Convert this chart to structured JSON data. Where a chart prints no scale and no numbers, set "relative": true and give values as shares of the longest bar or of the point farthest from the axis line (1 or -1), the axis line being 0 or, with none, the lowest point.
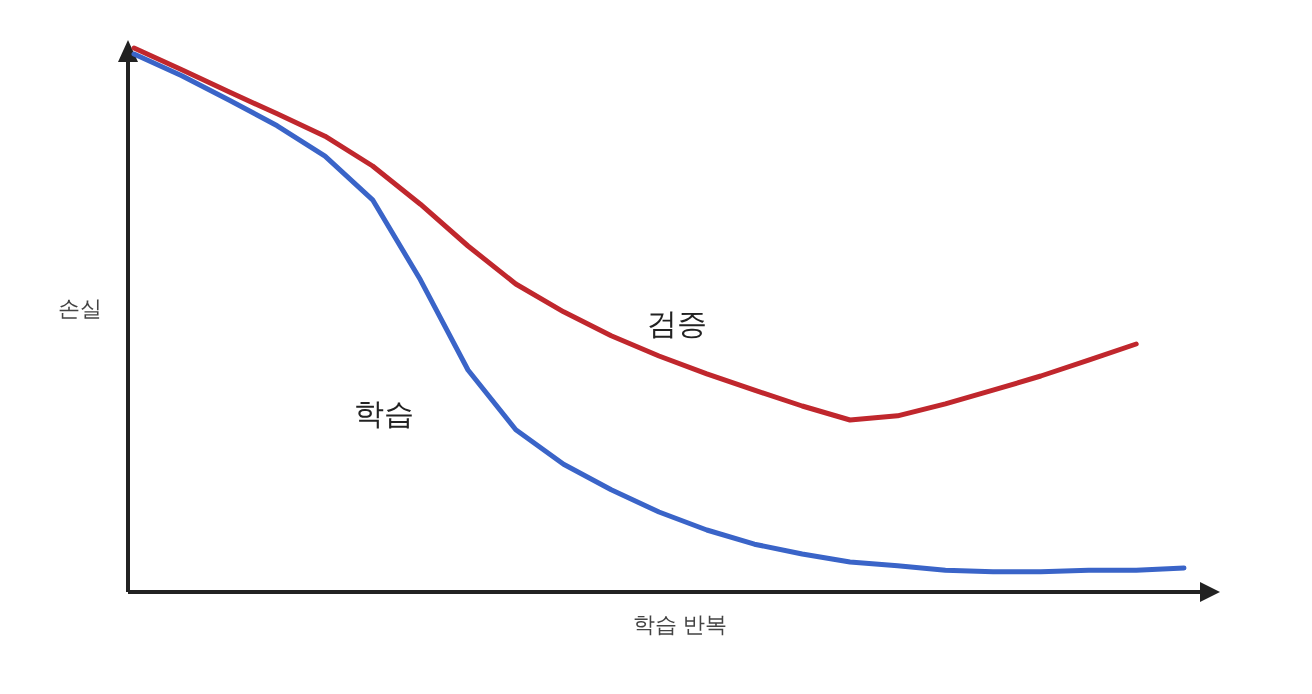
{
  "chart_data": {
    "type": "line",
    "xlabel": "학습 반복",
    "ylabel": "손실",
    "relative": true,
    "grid": false,
    "legend": false,
    "marker": "none",
    "line_style": "solid",
    "categories": [
      null,
      null,
      null,
      null,
      null,
      null,
      null,
      null,
      null,
      null,
      null,
      null,
      null,
      null,
      null,
      null,
      null,
      null,
      null,
      null,
      null,
      null,
      null
    ],
    "series": [
      {
        "name": "검증",
        "color": "#c0272d",
        "values": [
          1.0,
          0.96,
          0.919,
          0.879,
          0.838,
          0.783,
          0.713,
          0.636,
          0.566,
          0.515,
          0.471,
          0.434,
          0.401,
          0.371,
          0.342,
          0.316,
          0.324,
          0.346,
          0.371,
          0.397,
          0.426,
          0.456,
          null
        ]
      },
      {
        "name": "학습",
        "color": "#3a64c8",
        "values": [
          0.989,
          0.949,
          0.904,
          0.857,
          0.801,
          0.721,
          0.574,
          0.408,
          0.298,
          0.235,
          0.188,
          0.147,
          0.114,
          0.088,
          0.07,
          0.055,
          0.048,
          0.04,
          0.037,
          0.037,
          0.04,
          0.04,
          0.044
        ]
      }
    ]
  }
}
